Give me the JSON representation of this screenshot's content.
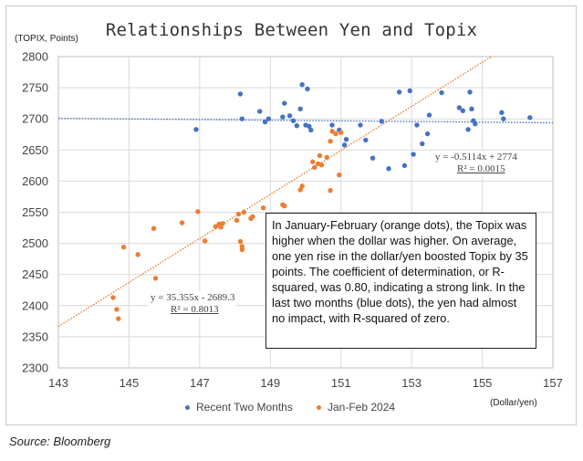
{
  "chart_data": {
    "type": "scatter",
    "title": "Relationships Between Yen and Topix",
    "ylabel": "(TOPIX, Points)",
    "xlabel": "(Dollar/yen)",
    "xlim": [
      143,
      157
    ],
    "ylim": [
      2300,
      2800
    ],
    "xticks": [
      "143",
      "145",
      "147",
      "149",
      "151",
      "153",
      "155",
      "157"
    ],
    "yticks": [
      "2300",
      "2350",
      "2400",
      "2450",
      "2500",
      "2550",
      "2600",
      "2650",
      "2700",
      "2750",
      "2800"
    ],
    "grid": true,
    "legend_position": "bottom",
    "series": [
      {
        "name": "Recent Two Months",
        "color": "#4472c4",
        "points": [
          [
            146.9,
            2683
          ],
          [
            148.15,
            2740
          ],
          [
            148.2,
            2700
          ],
          [
            148.7,
            2712
          ],
          [
            148.85,
            2695
          ],
          [
            148.95,
            2700
          ],
          [
            149.35,
            2703
          ],
          [
            149.4,
            2725
          ],
          [
            149.55,
            2705
          ],
          [
            149.65,
            2697
          ],
          [
            149.75,
            2689
          ],
          [
            149.85,
            2716
          ],
          [
            149.9,
            2755
          ],
          [
            150.0,
            2690
          ],
          [
            150.05,
            2748
          ],
          [
            150.1,
            2688
          ],
          [
            150.15,
            2682
          ],
          [
            150.75,
            2690
          ],
          [
            150.95,
            2682
          ],
          [
            151.1,
            2658
          ],
          [
            151.15,
            2667
          ],
          [
            151.55,
            2690
          ],
          [
            151.7,
            2666
          ],
          [
            151.9,
            2637
          ],
          [
            152.15,
            2696
          ],
          [
            152.35,
            2620
          ],
          [
            152.65,
            2743
          ],
          [
            152.8,
            2625
          ],
          [
            152.95,
            2745
          ],
          [
            153.05,
            2643
          ],
          [
            153.15,
            2690
          ],
          [
            153.3,
            2660
          ],
          [
            153.45,
            2676
          ],
          [
            153.5,
            2706
          ],
          [
            153.85,
            2742
          ],
          [
            154.35,
            2718
          ],
          [
            154.45,
            2713
          ],
          [
            154.6,
            2683
          ],
          [
            154.65,
            2743
          ],
          [
            154.7,
            2716
          ],
          [
            154.75,
            2697
          ],
          [
            154.8,
            2692
          ],
          [
            155.55,
            2710
          ],
          [
            155.6,
            2700
          ],
          [
            156.35,
            2702
          ]
        ]
      },
      {
        "name": "Jan-Feb 2024",
        "color": "#ed7d31",
        "points": [
          [
            144.55,
            2413
          ],
          [
            144.65,
            2394
          ],
          [
            144.7,
            2379
          ],
          [
            144.85,
            2494
          ],
          [
            145.25,
            2482
          ],
          [
            145.7,
            2524
          ],
          [
            145.75,
            2444
          ],
          [
            146.5,
            2533
          ],
          [
            146.95,
            2551
          ],
          [
            147.15,
            2504
          ],
          [
            147.45,
            2527
          ],
          [
            147.55,
            2531
          ],
          [
            147.6,
            2526
          ],
          [
            147.65,
            2532
          ],
          [
            148.05,
            2537
          ],
          [
            148.1,
            2547
          ],
          [
            148.15,
            2503
          ],
          [
            148.2,
            2490
          ],
          [
            148.2,
            2495
          ],
          [
            148.25,
            2550
          ],
          [
            148.45,
            2540
          ],
          [
            148.5,
            2543
          ],
          [
            148.8,
            2557
          ],
          [
            149.35,
            2562
          ],
          [
            149.4,
            2560
          ],
          [
            149.85,
            2586
          ],
          [
            149.9,
            2592
          ],
          [
            150.2,
            2631
          ],
          [
            150.25,
            2622
          ],
          [
            150.35,
            2628
          ],
          [
            150.4,
            2641
          ],
          [
            150.45,
            2626
          ],
          [
            150.6,
            2638
          ],
          [
            150.7,
            2585
          ],
          [
            150.7,
            2664
          ],
          [
            150.75,
            2680
          ],
          [
            150.85,
            2676
          ],
          [
            150.95,
            2610
          ],
          [
            151.0,
            2678
          ]
        ]
      }
    ],
    "trendlines": [
      {
        "series": "Recent Two Months",
        "slope": -0.5114,
        "intercept": 2774,
        "equation": "y = -0.5114x + 2774",
        "r2_label": "R² = 0.0015",
        "color": "#4472c4"
      },
      {
        "series": "Jan-Feb 2024",
        "slope": 35.355,
        "intercept": -2689.3,
        "equation": "y = 35.355x - 2689.3",
        "r2_label": "R² = 0.8013",
        "color": "#ed7d31"
      }
    ],
    "annotation": "In January-February (orange dots), the Topix was higher when the dollar was higher. On average, one yen rise in the dollar/yen boosted Topix by 35 points. The coefficient of determination, or R-squared, was 0.80, indicating a strong link. In the last two months (blue dots), the yen had almost no impact, with R-squared of zero."
  },
  "source": "Source: Bloomberg"
}
